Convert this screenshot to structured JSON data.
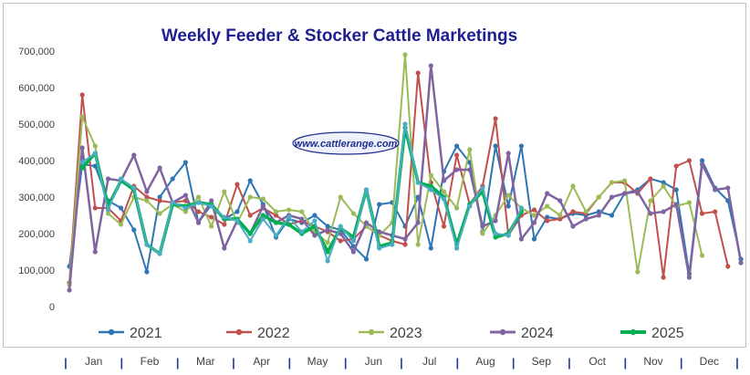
{
  "chart_data": {
    "type": "line",
    "title": "Weekly Feeder & Stocker Cattle Marketings",
    "watermark": "www.cattlerange.com",
    "ylim": [
      0,
      700000
    ],
    "yticks": [
      "0",
      "100,000",
      "200,000",
      "300,000",
      "400,000",
      "500,000",
      "600,000",
      "700,000"
    ],
    "ytick_values": [
      0,
      100000,
      200000,
      300000,
      400000,
      500000,
      600000,
      700000
    ],
    "months": [
      "Jan",
      "Feb",
      "Mar",
      "Apr",
      "May",
      "Jun",
      "Jul",
      "Aug",
      "Sep",
      "Oct",
      "Nov",
      "Dec"
    ],
    "weeks": 53,
    "grid": false,
    "legend_position": "bottom",
    "series": [
      {
        "name": "2021",
        "color": "#2e75b6",
        "width": 2,
        "values": [
          110000,
          390000,
          385000,
          290000,
          270000,
          210000,
          95000,
          300000,
          350000,
          395000,
          230000,
          280000,
          240000,
          260000,
          345000,
          280000,
          190000,
          240000,
          230000,
          250000,
          220000,
          210000,
          165000,
          130000,
          280000,
          285000,
          220000,
          300000,
          160000,
          370000,
          440000,
          395000,
          205000,
          440000,
          275000,
          440000,
          185000,
          245000,
          240000,
          255000,
          250000,
          260000,
          250000,
          310000,
          320000,
          350000,
          340000,
          320000,
          90000,
          400000,
          325000,
          290000,
          130000
        ]
      },
      {
        "name": "2022",
        "color": "#c0504d",
        "width": 2,
        "values": [
          65000,
          580000,
          270000,
          270000,
          235000,
          330000,
          300000,
          290000,
          285000,
          290000,
          260000,
          245000,
          225000,
          335000,
          250000,
          270000,
          250000,
          225000,
          235000,
          220000,
          205000,
          180000,
          185000,
          220000,
          195000,
          180000,
          170000,
          640000,
          340000,
          220000,
          415000,
          280000,
          330000,
          515000,
          195000,
          250000,
          265000,
          235000,
          240000,
          260000,
          255000,
          300000,
          340000,
          340000,
          310000,
          350000,
          80000,
          385000,
          400000,
          255000,
          260000,
          110000
        ]
      },
      {
        "name": "2023",
        "color": "#9bbb59",
        "width": 2,
        "values": [
          60000,
          520000,
          440000,
          255000,
          225000,
          300000,
          290000,
          255000,
          280000,
          260000,
          300000,
          220000,
          315000,
          230000,
          300000,
          295000,
          260000,
          265000,
          260000,
          205000,
          175000,
          300000,
          255000,
          220000,
          195000,
          230000,
          690000,
          170000,
          360000,
          315000,
          270000,
          430000,
          200000,
          250000,
          305000,
          270000,
          250000,
          275000,
          250000,
          330000,
          260000,
          300000,
          340000,
          345000,
          95000,
          290000,
          330000,
          275000,
          285000,
          140000
        ]
      },
      {
        "name": "2024",
        "color": "#8064a2",
        "width": 2.5,
        "values": [
          45000,
          435000,
          150000,
          350000,
          345000,
          415000,
          315000,
          380000,
          285000,
          305000,
          230000,
          290000,
          160000,
          235000,
          200000,
          275000,
          230000,
          250000,
          240000,
          195000,
          210000,
          200000,
          150000,
          230000,
          205000,
          195000,
          185000,
          230000,
          660000,
          345000,
          375000,
          375000,
          220000,
          235000,
          420000,
          185000,
          230000,
          310000,
          290000,
          220000,
          240000,
          250000,
          300000,
          310000,
          315000,
          255000,
          260000,
          280000,
          80000,
          390000,
          320000,
          325000,
          120000
        ]
      },
      {
        "name": "2025",
        "color": "#00b050",
        "width": 3.5,
        "values": [
          null,
          380000,
          420000,
          275000,
          345000,
          320000,
          170000,
          145000,
          280000,
          275000,
          285000,
          280000,
          240000,
          240000,
          200000,
          250000,
          230000,
          225000,
          200000,
          220000,
          150000,
          215000,
          190000,
          320000,
          165000,
          175000,
          490000,
          340000,
          330000,
          300000,
          170000,
          280000,
          315000,
          190000,
          200000,
          260000
        ]
      },
      {
        "name": "",
        "color": "#4bacc6",
        "width": 2,
        "values": [
          null,
          395000,
          420000,
          265000,
          350000,
          325000,
          170000,
          145000,
          285000,
          270000,
          285000,
          275000,
          245000,
          235000,
          180000,
          240000,
          195000,
          245000,
          205000,
          235000,
          125000,
          220000,
          180000,
          320000,
          160000,
          170000,
          500000,
          340000,
          320000,
          295000,
          160000,
          275000,
          325000,
          200000,
          195000,
          270000
        ]
      }
    ]
  }
}
